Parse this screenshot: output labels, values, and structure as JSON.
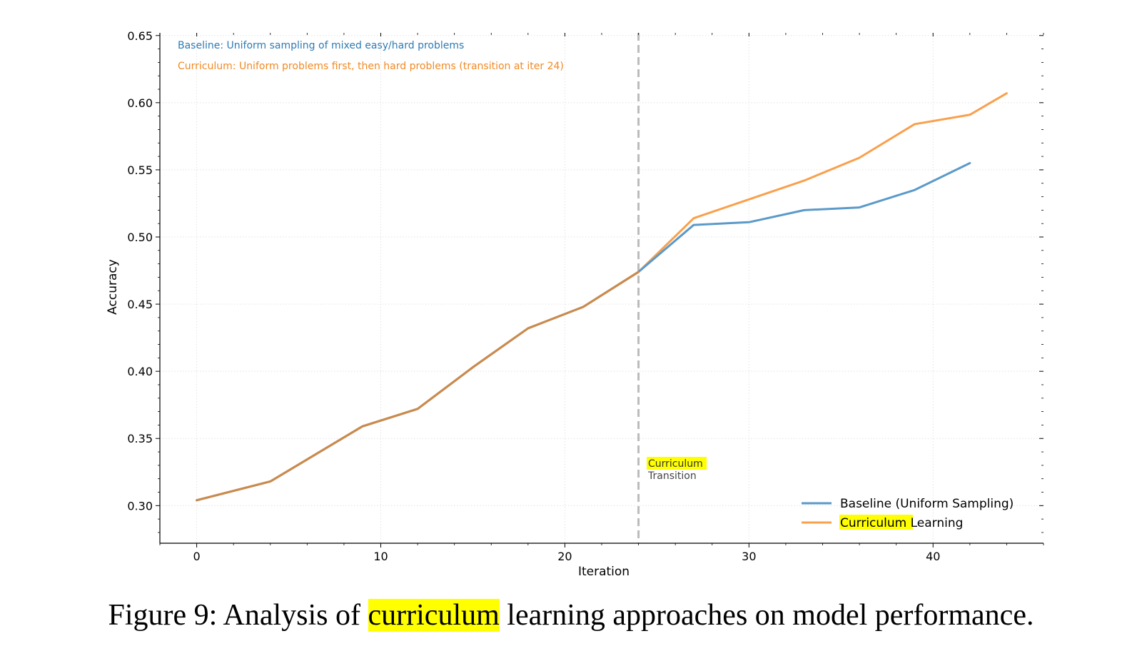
{
  "chart_data": {
    "type": "line",
    "title": "",
    "xlabel": "Iteration",
    "ylabel": "Accuracy",
    "xlim": [
      -2,
      46
    ],
    "ylim": [
      0.272,
      0.652
    ],
    "x_ticks": [
      0,
      10,
      20,
      30,
      40
    ],
    "y_ticks": [
      0.3,
      0.35,
      0.4,
      0.45,
      0.5,
      0.55,
      0.6,
      0.65
    ],
    "x_tick_labels": [
      "0",
      "10",
      "20",
      "30",
      "40"
    ],
    "y_tick_labels": [
      "0.30",
      "0.35",
      "0.40",
      "0.45",
      "0.50",
      "0.55",
      "0.60",
      "0.65"
    ],
    "grid": true,
    "legend_position": "lower-right",
    "series": [
      {
        "name": "Baseline (Uniform Sampling)",
        "color": "#5b9ac9",
        "x": [
          0,
          4,
          9,
          12,
          15,
          18,
          21,
          24,
          27,
          30,
          33,
          36,
          39,
          42
        ],
        "y": [
          0.304,
          0.318,
          0.359,
          0.372,
          0.403,
          0.432,
          0.448,
          0.474,
          0.509,
          0.511,
          0.52,
          0.522,
          0.535,
          0.555
        ]
      },
      {
        "name_highlight": "Curriculum",
        "name_rest": " Learning",
        "color": "#f9a04c",
        "x": [
          0,
          4,
          9,
          12,
          15,
          18,
          21,
          24,
          27,
          30,
          33,
          36,
          39,
          42,
          44
        ],
        "y": [
          0.304,
          0.318,
          0.359,
          0.372,
          0.403,
          0.432,
          0.448,
          0.474,
          0.514,
          0.528,
          0.542,
          0.559,
          0.584,
          0.591,
          0.607
        ]
      }
    ],
    "overlap_color": "#cc8a4a",
    "transition": {
      "x": 24,
      "color": "#bbbbbb",
      "label_highlight": "Curriculum",
      "label_rest": "Transition"
    },
    "annotations": [
      {
        "text": "Baseline: Uniform sampling of mixed easy/hard problems",
        "color": "#2e7bb4"
      },
      {
        "text": "Curriculum: Uniform problems first, then hard problems (transition at iter 24)",
        "color": "#f08a24"
      }
    ]
  },
  "caption": {
    "prefix": "Figure 9: Analysis of ",
    "highlight": "curriculum",
    "suffix": " learning approaches on model performance."
  }
}
